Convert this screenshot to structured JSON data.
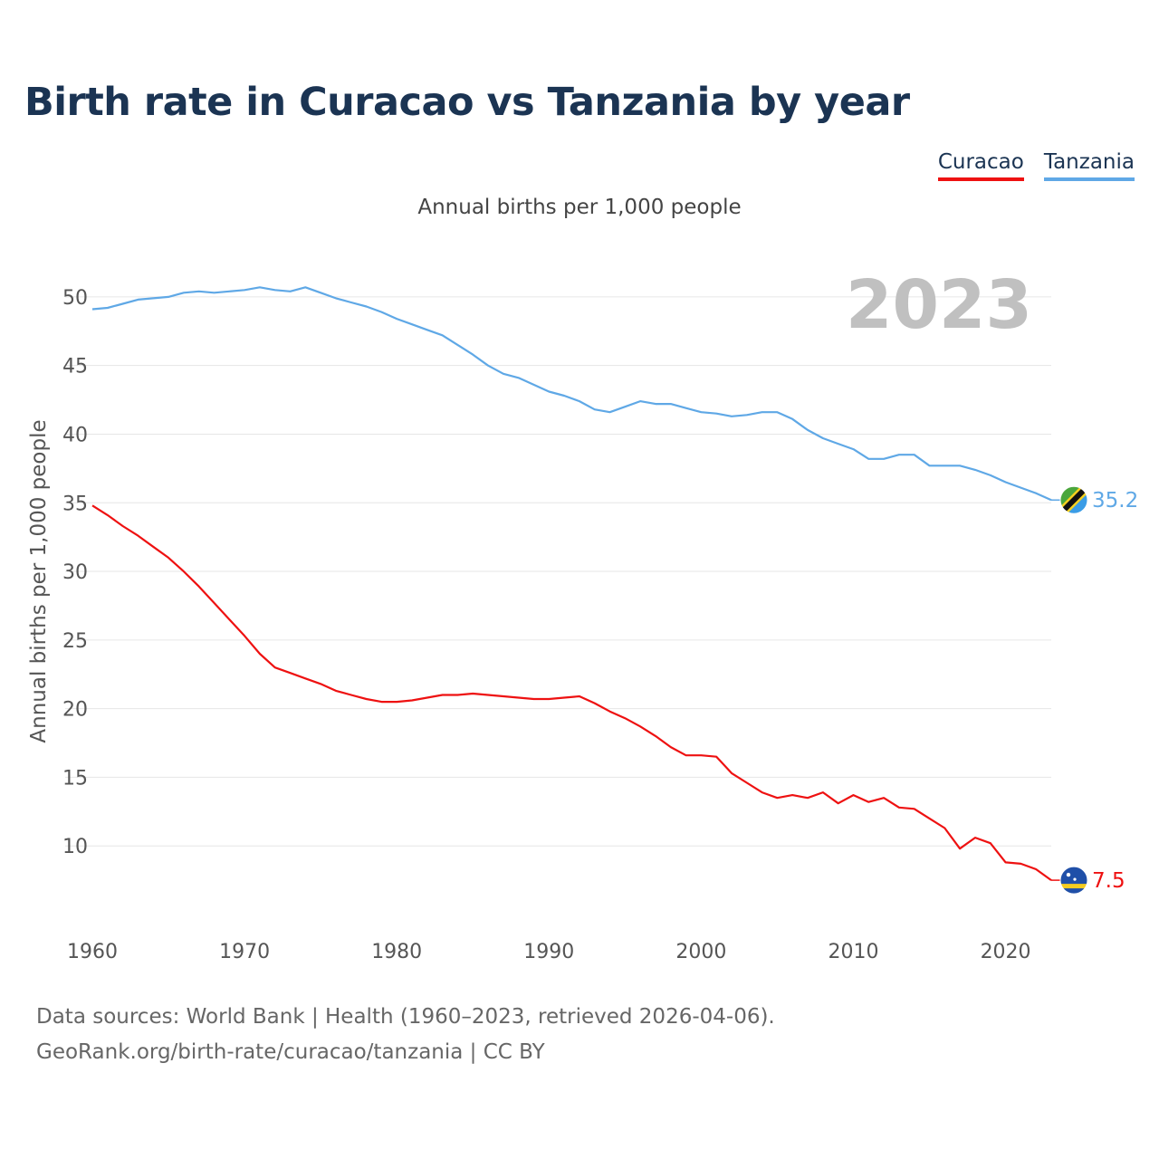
{
  "title": "Birth rate in Curacao vs Tanzania by year",
  "legend": [
    {
      "name": "Curacao",
      "color": "#ee1111"
    },
    {
      "name": "Tanzania",
      "color": "#5fa8e6"
    }
  ],
  "subtitle": "Annual births per 1,000 people",
  "year_label": "2023",
  "footer": {
    "line1": "Data sources: World Bank | Health (1960–2023, retrieved 2026-04-06).",
    "line2": "GeoRank.org/birth-rate/curacao/tanzania | CC BY"
  },
  "chart_data": {
    "type": "line",
    "title": "Birth rate in Curacao vs Tanzania by year",
    "xlabel": "",
    "ylabel": "Annual births per 1,000 people",
    "xlim": [
      1960,
      2023
    ],
    "ylim": [
      5,
      52.5
    ],
    "x_ticks": [
      1960,
      1970,
      1980,
      1990,
      2000,
      2010,
      2020
    ],
    "y_ticks": [
      10,
      15,
      20,
      25,
      30,
      35,
      40,
      45,
      50
    ],
    "grid": true,
    "legend_position": "top-right",
    "x": [
      1960,
      1961,
      1962,
      1963,
      1964,
      1965,
      1966,
      1967,
      1968,
      1969,
      1970,
      1971,
      1972,
      1973,
      1974,
      1975,
      1976,
      1977,
      1978,
      1979,
      1980,
      1981,
      1982,
      1983,
      1984,
      1985,
      1986,
      1987,
      1988,
      1989,
      1990,
      1991,
      1992,
      1993,
      1994,
      1995,
      1996,
      1997,
      1998,
      1999,
      2000,
      2001,
      2002,
      2003,
      2004,
      2005,
      2006,
      2007,
      2008,
      2009,
      2010,
      2011,
      2012,
      2013,
      2014,
      2015,
      2016,
      2017,
      2018,
      2019,
      2020,
      2021,
      2022,
      2023
    ],
    "series": [
      {
        "name": "Tanzania",
        "color": "#5fa8e6",
        "end_label": "35.2",
        "values": [
          49.1,
          49.2,
          49.5,
          49.8,
          49.9,
          50.0,
          50.3,
          50.4,
          50.3,
          50.4,
          50.5,
          50.7,
          50.5,
          50.4,
          50.7,
          50.3,
          49.9,
          49.6,
          49.3,
          48.9,
          48.4,
          48.0,
          47.6,
          47.2,
          46.5,
          45.8,
          45.0,
          44.4,
          44.1,
          43.6,
          43.1,
          42.8,
          42.4,
          41.8,
          41.6,
          42.0,
          42.4,
          42.2,
          42.2,
          41.9,
          41.6,
          41.5,
          41.3,
          41.4,
          41.6,
          41.6,
          41.1,
          40.3,
          39.7,
          39.3,
          38.9,
          38.2,
          38.2,
          38.5,
          38.5,
          37.7,
          37.7,
          37.7,
          37.4,
          37.0,
          36.5,
          36.1,
          35.7,
          35.2
        ]
      },
      {
        "name": "Curacao",
        "color": "#ee1111",
        "end_label": "7.5",
        "values": [
          34.8,
          34.1,
          33.3,
          32.6,
          31.8,
          31.0,
          30.0,
          28.9,
          27.7,
          26.5,
          25.3,
          24.0,
          23.0,
          22.6,
          22.2,
          21.8,
          21.3,
          21.0,
          20.7,
          20.5,
          20.5,
          20.6,
          20.8,
          21.0,
          21.0,
          21.1,
          21.0,
          20.9,
          20.8,
          20.7,
          20.7,
          20.8,
          20.9,
          20.4,
          19.8,
          19.3,
          18.7,
          18.0,
          17.2,
          16.6,
          16.6,
          16.5,
          15.3,
          14.6,
          13.9,
          13.5,
          13.7,
          13.5,
          13.9,
          13.1,
          13.7,
          13.2,
          13.5,
          12.8,
          12.7,
          12.0,
          11.3,
          9.8,
          10.6,
          10.2,
          8.8,
          8.7,
          8.3,
          7.5
        ]
      }
    ]
  }
}
